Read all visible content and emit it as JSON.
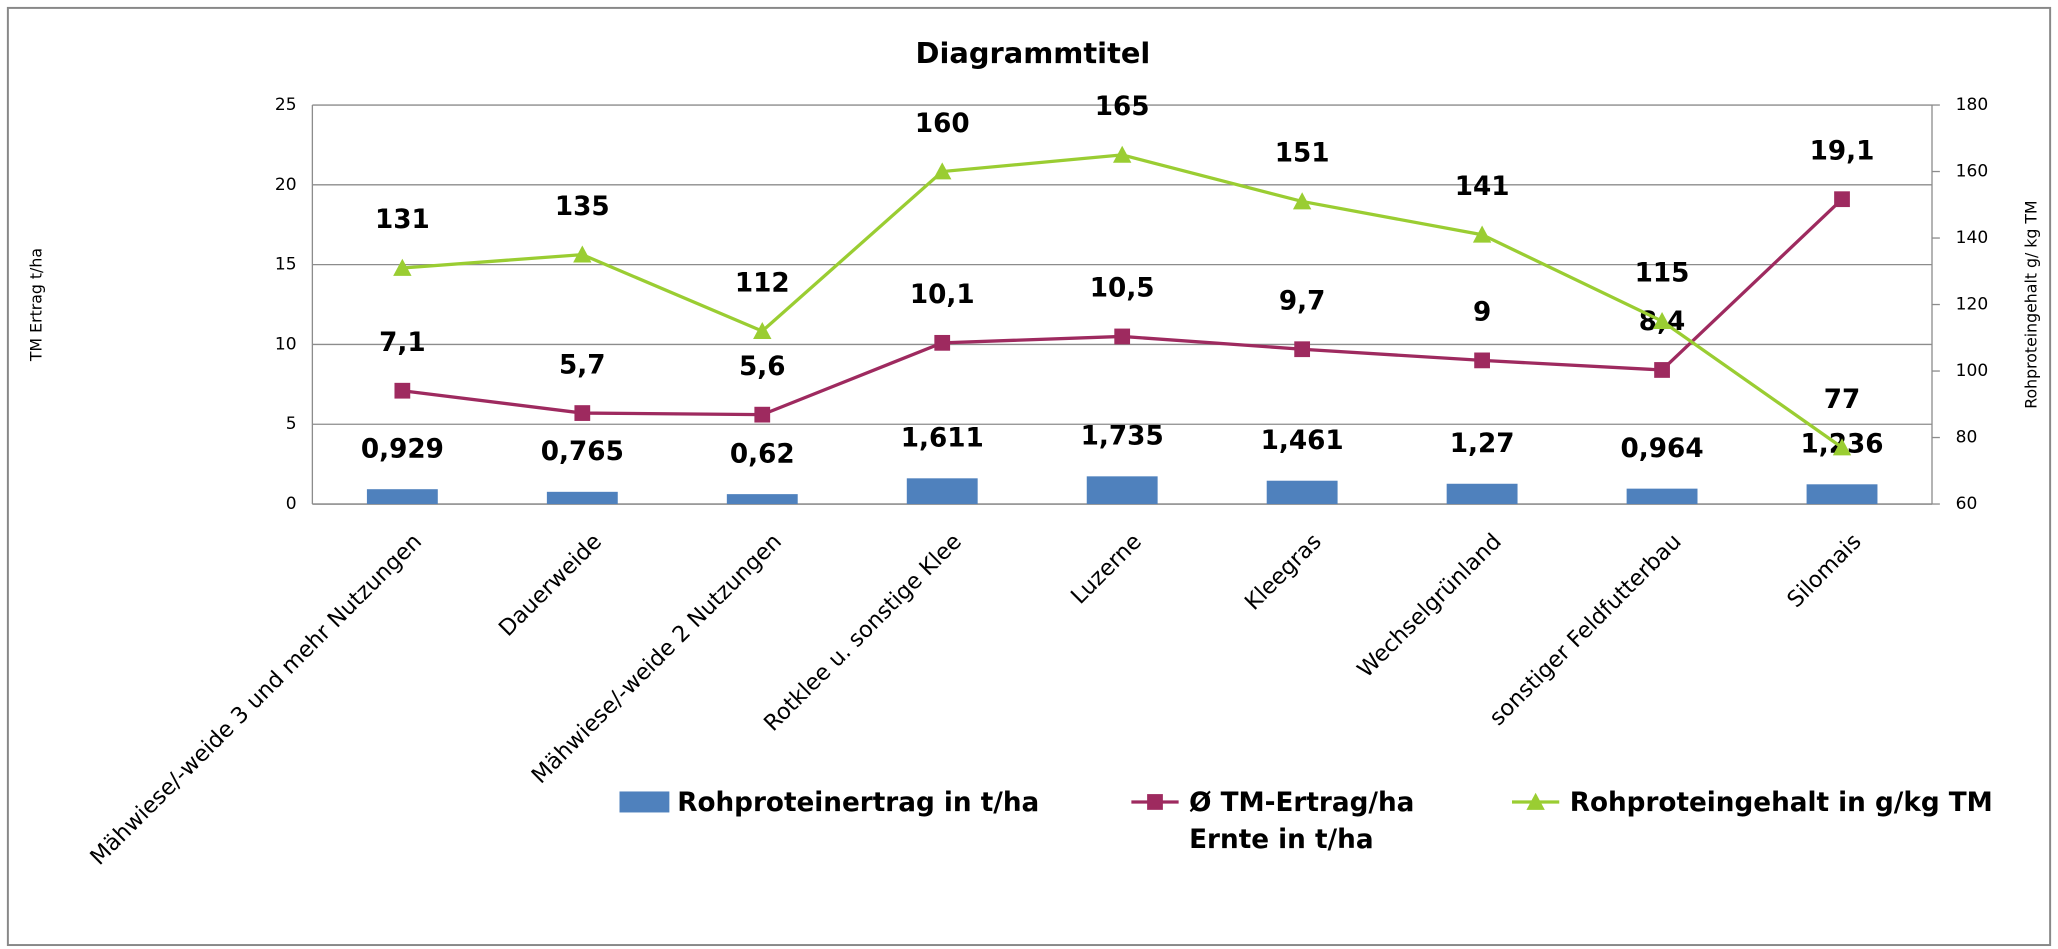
{
  "chart_data": {
    "type": "bar-line",
    "title": "Diagrammtitel",
    "y_label": "TM Ertrag t/ha",
    "y2_label": "Rohproteingehalt g/ kg TM",
    "categories": [
      "Mähwiese/-weide 3 und mehr Nutzungen",
      "Dauerweide",
      "Mähwiese/-weide 2 Nutzungen",
      "Rotklee u. sonstige Klee",
      "Luzerne",
      "Kleegras",
      "Wechselgrünland",
      "sonstiger Feldfutterbau",
      "Silomais"
    ],
    "series": [
      {
        "name": "Rohproteinertrag in t/ha",
        "type": "bar",
        "color": "#4f81bd",
        "values": [
          0.929,
          0.765,
          0.62,
          1.611,
          1.735,
          1.461,
          1.27,
          0.964,
          1.236
        ],
        "value_labels": [
          "0,929",
          "0,765",
          "0,62",
          "1,611",
          "1,735",
          "1,461",
          "1,27",
          "0,964",
          "1,236"
        ]
      },
      {
        "name": "Ø TM-Ertrag/ha Ernte in t/ha",
        "type": "line",
        "marker": "square",
        "color": "#9e2a5f",
        "values": [
          7.1,
          5.7,
          5.6,
          10.1,
          10.5,
          9.7,
          9,
          8.4,
          19.1
        ],
        "value_labels": [
          "7,1",
          "5,7",
          "5,6",
          "10,1",
          "10,5",
          "9,7",
          "9",
          "8,4",
          "19,1"
        ]
      },
      {
        "name": "Rohproteingehalt in g/kg TM",
        "type": "line",
        "marker": "triangle",
        "color": "#9acd32",
        "axis": "y2",
        "values": [
          131,
          135,
          112,
          160,
          165,
          151,
          141,
          115,
          77
        ]
      }
    ],
    "ylim": [
      0,
      25
    ],
    "yticks": [
      0,
      5,
      10,
      15,
      20,
      25
    ],
    "y2lim": [
      60,
      180
    ],
    "y2ticks": [
      60,
      80,
      100,
      120,
      140,
      160,
      180
    ],
    "grid": true,
    "legend": "bottom"
  }
}
